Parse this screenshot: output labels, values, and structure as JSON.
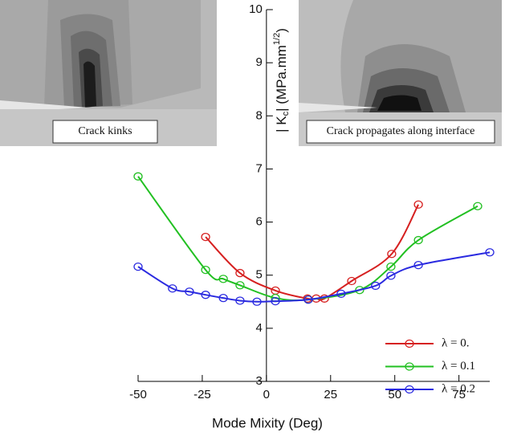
{
  "chart_data": {
    "type": "line",
    "xlabel": "Mode Mixity (Deg)",
    "ylabel": {
      "main": "| K",
      "sub": "c",
      "after": "|  (MPa.mm",
      "sup": "1/2",
      "close": ")"
    },
    "xlim": [
      -50,
      87
    ],
    "ylim": [
      3,
      10
    ],
    "xticks": [
      -50,
      -25,
      0,
      25,
      50,
      75
    ],
    "yticks": [
      3,
      4,
      5,
      6,
      7,
      8,
      9,
      10
    ],
    "legend": "lower right",
    "series": [
      {
        "name": "λ = 0.",
        "color": "#d62020",
        "x": [
          -23.7,
          -10.3,
          3.5,
          16.0,
          19.4,
          22.6,
          33.2,
          48.8,
          59.2
        ],
        "values": [
          5.72,
          5.04,
          4.71,
          4.56,
          4.56,
          4.56,
          4.89,
          5.4,
          6.33
        ]
      },
      {
        "name": "λ = 0.1",
        "color": "#22c022",
        "x": [
          -50,
          -23.7,
          -16.8,
          -10.3,
          3.5,
          16.3,
          36.3,
          48.5,
          59.2,
          82.3
        ],
        "values": [
          6.86,
          5.1,
          4.93,
          4.81,
          4.57,
          4.54,
          4.72,
          5.16,
          5.66,
          6.3
        ]
      },
      {
        "name": "λ = 0.2",
        "color": "#2a2ae0",
        "x": [
          -50,
          -36.6,
          -30,
          -23.7,
          -16.8,
          -10.3,
          -3.7,
          3.5,
          16.3,
          29.1,
          42.5,
          48.5,
          59.2,
          87
        ],
        "values": [
          5.16,
          4.75,
          4.69,
          4.63,
          4.57,
          4.52,
          4.5,
          4.51,
          4.54,
          4.65,
          4.8,
          4.99,
          5.19,
          5.43
        ]
      }
    ],
    "insets": [
      "Crack kinks",
      "Crack propagates along interface"
    ]
  }
}
